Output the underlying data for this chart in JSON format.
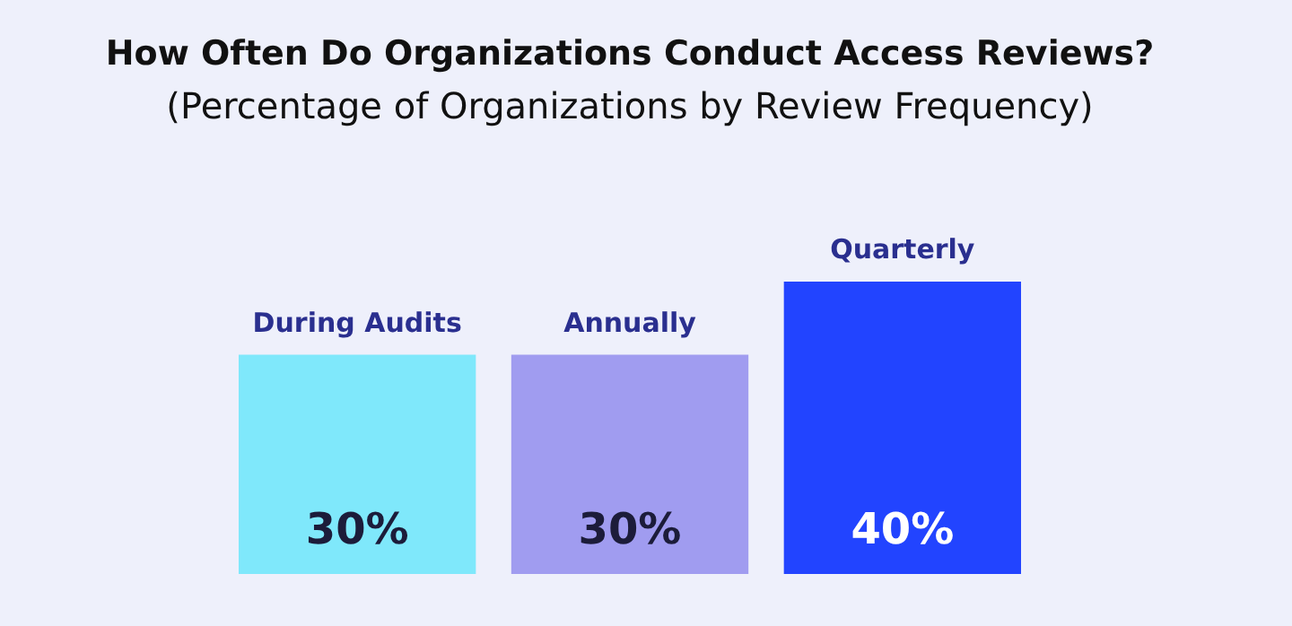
{
  "chart_data": {
    "type": "bar",
    "title": "How Often Do Organizations Conduct Access Reviews?",
    "subtitle": "(Percentage of Organizations by Review Frequency)",
    "categories": [
      "During Audits",
      "Annually",
      "Quarterly"
    ],
    "values": [
      30,
      30,
      40
    ],
    "colors": [
      "#7fe8fb",
      "#a09cf0",
      "#2244ff"
    ],
    "value_labels": [
      "30%",
      "30%",
      "40%"
    ]
  }
}
